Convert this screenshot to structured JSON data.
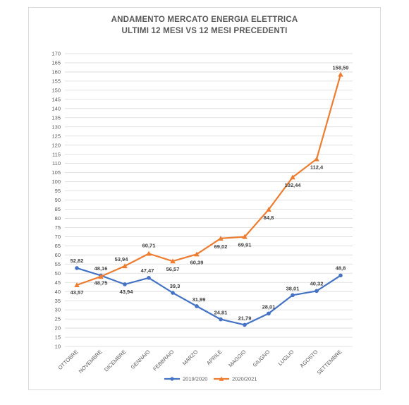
{
  "chart_data": {
    "type": "line",
    "title": [
      "ANDAMENTO MERCATO ENERGIA ELETTRICA",
      "ULTIMI 12 MESI VS 12 MESI PRECEDENTI"
    ],
    "categories": [
      "OTTOBRE",
      "NOVEMBRE",
      "DICEMBRE",
      "GENNAIO",
      "FEBBRAIO",
      "MARZO",
      "APRILE",
      "MAGGIO",
      "GIUGNO",
      "LUGLIO",
      "AGOSTO",
      "SETTEMBRE"
    ],
    "series": [
      {
        "name": "2019/2020",
        "color": "#4472c4",
        "marker": "circle",
        "values": [
          52.82,
          48.75,
          43.94,
          47.47,
          39.3,
          31.99,
          24.81,
          21.79,
          28.01,
          38.01,
          40.32,
          48.8
        ],
        "labels": [
          "52,82",
          "48,75",
          "43,94",
          "47,47",
          "39,3",
          "31,99",
          "24,81",
          "21,79",
          "28,01",
          "38,01",
          "40,32",
          "48,8"
        ]
      },
      {
        "name": "2020/2021",
        "color": "#ed7d31",
        "marker": "triangle",
        "values": [
          43.57,
          48.16,
          53.94,
          60.71,
          56.57,
          60.39,
          69.02,
          69.91,
          84.8,
          102.44,
          112.4,
          158.59
        ],
        "labels": [
          "43,57",
          "48,16",
          "53,94",
          "60,71",
          "56,57",
          "60,39",
          "69,02",
          "69,91",
          "84,8",
          "102,44",
          "112,4",
          "158,59"
        ]
      }
    ],
    "ylim": [
      10,
      170
    ],
    "ystep": 5,
    "grid": true,
    "legend_position": "bottom"
  }
}
